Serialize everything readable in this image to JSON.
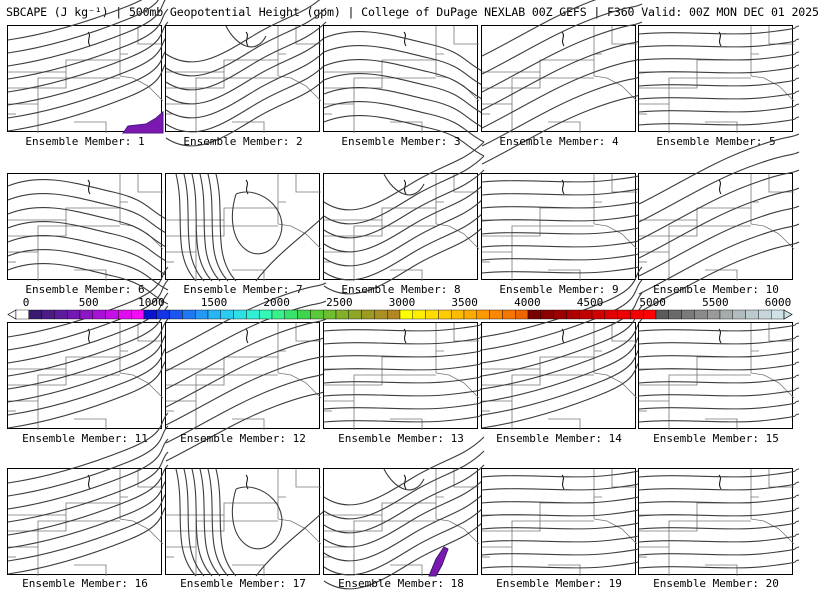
{
  "title": "SBCAPE (J kg⁻¹) | 500mb Geopotential Height (gpm) | College of DuPage NEXLAB 00Z GEFS | F360 Valid: 00Z MON DEC 01 2025",
  "members": [
    {
      "label": "Ensemble Member: 1",
      "style": 1,
      "blob": "se"
    },
    {
      "label": "Ensemble Member: 2",
      "style": 2,
      "blob": ""
    },
    {
      "label": "Ensemble Member: 3",
      "style": 3,
      "blob": ""
    },
    {
      "label": "Ensemble Member: 4",
      "style": 4,
      "blob": ""
    },
    {
      "label": "Ensemble Member: 5",
      "style": 5,
      "blob": ""
    },
    {
      "label": "Ensemble Member: 6",
      "style": 3,
      "blob": ""
    },
    {
      "label": "Ensemble Member: 7",
      "style": 6,
      "blob": ""
    },
    {
      "label": "Ensemble Member: 8",
      "style": 2,
      "blob": ""
    },
    {
      "label": "Ensemble Member: 9",
      "style": 5,
      "blob": ""
    },
    {
      "label": "Ensemble Member: 10",
      "style": 4,
      "blob": ""
    },
    {
      "label": "Ensemble Member: 11",
      "style": 1,
      "blob": ""
    },
    {
      "label": "Ensemble Member: 12",
      "style": 4,
      "blob": ""
    },
    {
      "label": "Ensemble Member: 13",
      "style": 5,
      "blob": ""
    },
    {
      "label": "Ensemble Member: 14",
      "style": 1,
      "blob": ""
    },
    {
      "label": "Ensemble Member: 15",
      "style": 5,
      "blob": ""
    },
    {
      "label": "Ensemble Member: 16",
      "style": 1,
      "blob": ""
    },
    {
      "label": "Ensemble Member: 17",
      "style": 6,
      "blob": ""
    },
    {
      "label": "Ensemble Member: 18",
      "style": 2,
      "blob": "s"
    },
    {
      "label": "Ensemble Member: 19",
      "style": 5,
      "blob": ""
    },
    {
      "label": "Ensemble Member: 20",
      "style": 5,
      "blob": ""
    }
  ],
  "colorbar": {
    "ticks": [
      "0",
      "500",
      "1000",
      "1500",
      "2000",
      "2500",
      "3000",
      "3500",
      "4000",
      "4500",
      "5000",
      "5500",
      "6000"
    ],
    "colors": [
      "#ffffff",
      "#3a1a6e",
      "#4b1a86",
      "#5c1b9c",
      "#7318b2",
      "#8c16c6",
      "#a812d8",
      "#c40fe6",
      "#e00cef",
      "#f50af5",
      "#0a12d0",
      "#1233e6",
      "#1a55f0",
      "#1f77f4",
      "#249af6",
      "#27b5f6",
      "#2accf2",
      "#2de0e6",
      "#31efd4",
      "#35f7b7",
      "#38f08c",
      "#37e36a",
      "#3dd64a",
      "#59c93a",
      "#6fbd30",
      "#82b02a",
      "#8ea525",
      "#9d9a22",
      "#a89023",
      "#b38624",
      "#ffff00",
      "#ffee00",
      "#ffdd00",
      "#ffcc00",
      "#ffbb00",
      "#ffaa00",
      "#ff9900",
      "#fb8800",
      "#f57700",
      "#ef6600",
      "#7a0000",
      "#8a0000",
      "#9c0000",
      "#ae0000",
      "#c00000",
      "#d20000",
      "#e00000",
      "#ec0000",
      "#f50000",
      "#ff0000",
      "#5a5a5a",
      "#6a6a6a",
      "#7a7a7a",
      "#8a8a8a",
      "#9a9a9a",
      "#a6acae",
      "#b2bcbe",
      "#bccace",
      "#c6d6da",
      "#cfe2e6"
    ]
  }
}
